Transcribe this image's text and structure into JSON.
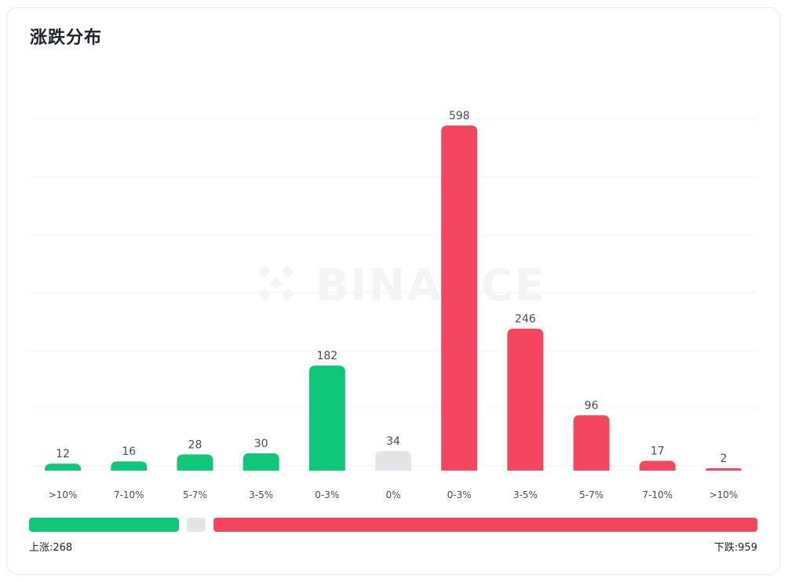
{
  "title": "涨跌分布",
  "watermark": "BINANCE",
  "colors": {
    "up": "#10c779",
    "flat": "#e3e5e8",
    "down": "#f5465f",
    "grid": "#eeeff1",
    "text": "#474d57"
  },
  "chart_data": {
    "type": "bar",
    "title": "涨跌分布",
    "categories": [
      ">10%",
      "7-10%",
      "5-7%",
      "3-5%",
      "0-3%",
      "0%",
      "0-3%",
      "3-5%",
      "5-7%",
      "7-10%",
      ">10%"
    ],
    "values": [
      12,
      16,
      28,
      30,
      182,
      34,
      598,
      246,
      96,
      17,
      2
    ],
    "bar_groups": [
      "up",
      "up",
      "up",
      "up",
      "up",
      "flat",
      "down",
      "down",
      "down",
      "down",
      "down"
    ],
    "ylim": [
      0,
      598
    ],
    "grid": true
  },
  "summary": {
    "up_label": "上涨:268",
    "down_label": "下跌:959",
    "up_count": 268,
    "flat_count": 34,
    "down_count": 959
  }
}
